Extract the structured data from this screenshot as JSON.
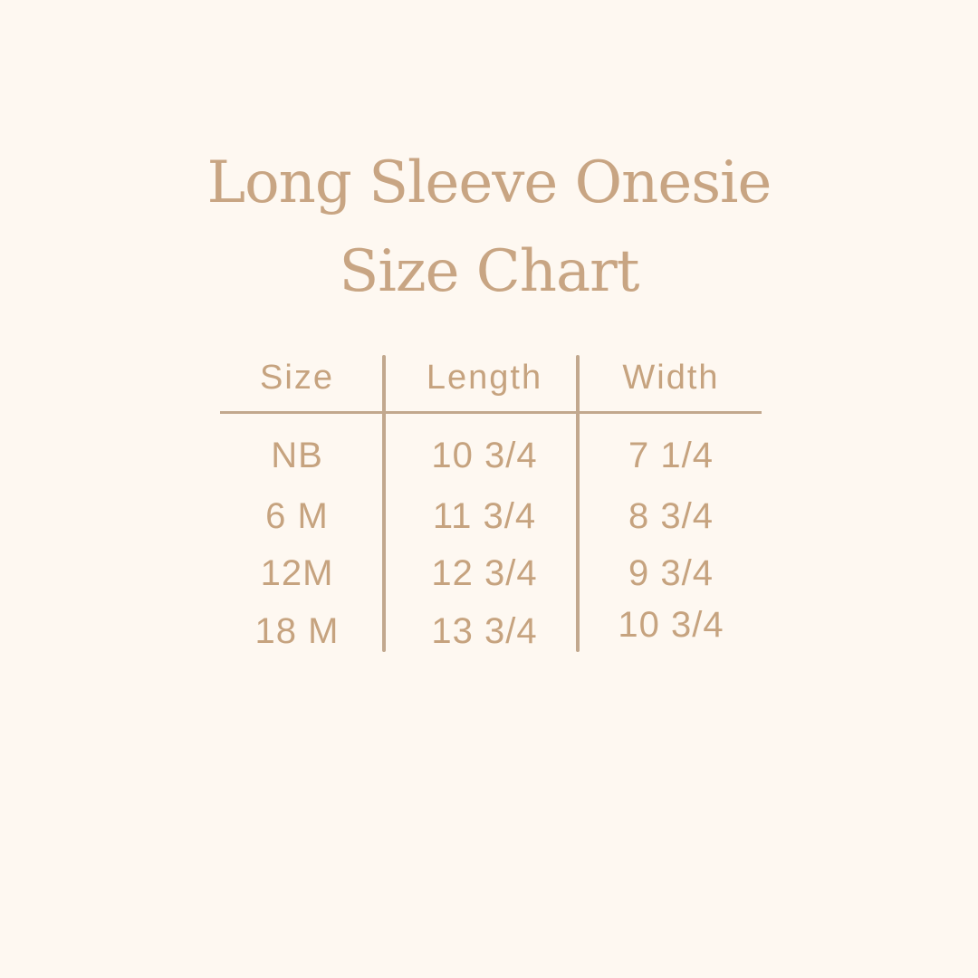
{
  "title": {
    "line1": "Long Sleeve Onesie",
    "line2": "Size Chart"
  },
  "table": {
    "headers": [
      "Size",
      "Length",
      "Width"
    ],
    "rows": [
      [
        "NB",
        "10 3/4",
        "7 1/4"
      ],
      [
        "6 M",
        "11 3/4",
        "8 3/4"
      ],
      [
        "12M",
        "12 3/4",
        "9 3/4"
      ],
      [
        "18 M",
        "13 3/4",
        "10 3/4"
      ]
    ]
  },
  "colors": {
    "background": "#fef8f1",
    "text": "#c6a37f",
    "lines": "#c2a88e"
  }
}
